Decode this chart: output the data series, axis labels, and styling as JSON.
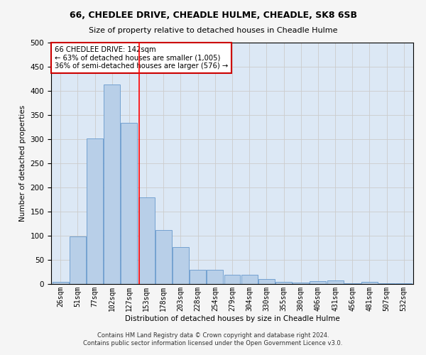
{
  "title1": "66, CHEDLEE DRIVE, CHEADLE HULME, CHEADLE, SK8 6SB",
  "title2": "Size of property relative to detached houses in Cheadle Hulme",
  "xlabel": "Distribution of detached houses by size in Cheadle Hulme",
  "ylabel": "Number of detached properties",
  "bin_labels": [
    "26sqm",
    "51sqm",
    "77sqm",
    "102sqm",
    "127sqm",
    "153sqm",
    "178sqm",
    "203sqm",
    "228sqm",
    "254sqm",
    "279sqm",
    "304sqm",
    "330sqm",
    "355sqm",
    "380sqm",
    "406sqm",
    "431sqm",
    "456sqm",
    "481sqm",
    "507sqm",
    "532sqm"
  ],
  "bar_values": [
    5,
    99,
    301,
    413,
    334,
    179,
    112,
    76,
    29,
    29,
    19,
    19,
    10,
    5,
    3,
    6,
    7,
    1,
    4,
    2,
    1
  ],
  "bar_color": "#b8cfe8",
  "bar_edge_color": "#6699cc",
  "vline_x": 4.58,
  "annotation_text": "66 CHEDLEE DRIVE: 142sqm\n← 63% of detached houses are smaller (1,005)\n36% of semi-detached houses are larger (576) →",
  "annotation_box_color": "#ffffff",
  "annotation_box_edge_color": "#cc0000",
  "footer1": "Contains HM Land Registry data © Crown copyright and database right 2024.",
  "footer2": "Contains public sector information licensed under the Open Government Licence v3.0.",
  "grid_color": "#cccccc",
  "background_color": "#dce8f5",
  "fig_background": "#f5f5f5",
  "ylim": [
    0,
    500
  ]
}
